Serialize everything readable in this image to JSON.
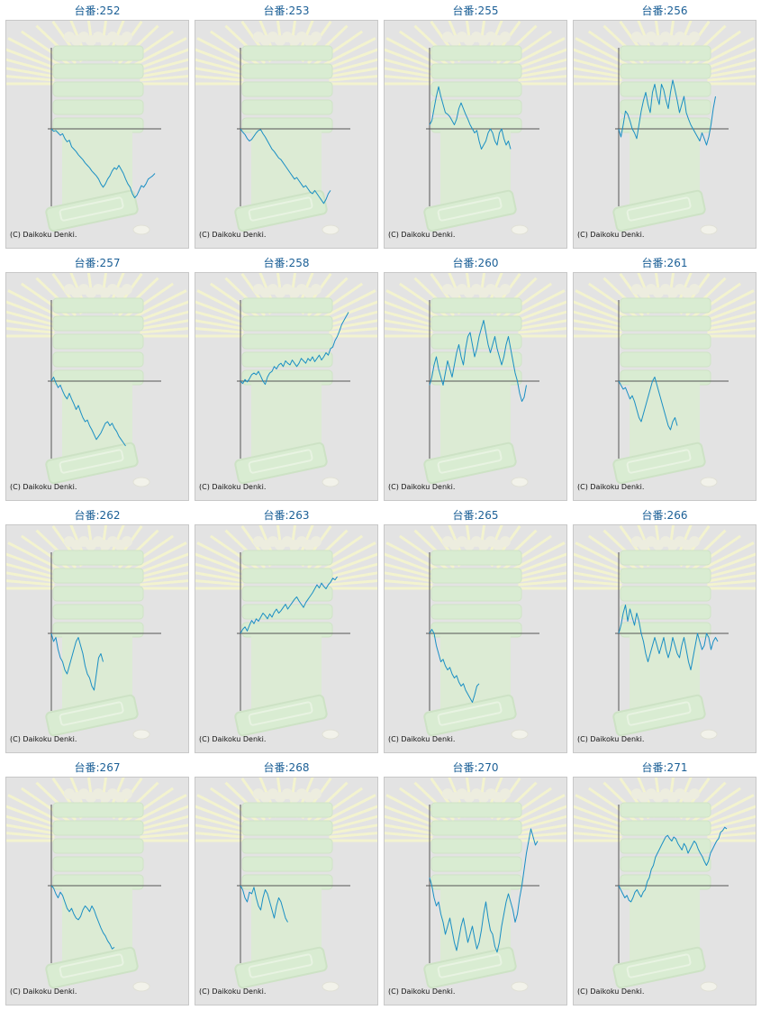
{
  "copyright": "(C) Daikoku Denki.",
  "line_color": "#1a8fc4",
  "chart_data": [
    {
      "type": "line",
      "title": "台番:252",
      "values": [
        0,
        -3,
        -2,
        -5,
        -8,
        -6,
        -12,
        -16,
        -14,
        -22,
        -25,
        -28,
        -32,
        -35,
        -38,
        -42,
        -45,
        -48,
        -52,
        -55,
        -58,
        -62,
        -68,
        -72,
        -68,
        -62,
        -58,
        -52,
        -48,
        -50,
        -45,
        -50,
        -55,
        -62,
        -68,
        -72,
        -80,
        -85,
        -82,
        -76,
        -70,
        -72,
        -68,
        -62,
        -60,
        -58,
        -55
      ]
    },
    {
      "type": "line",
      "title": "台番:253",
      "values": [
        0,
        -4,
        -7,
        -12,
        -15,
        -13,
        -9,
        -5,
        -2,
        -1,
        -6,
        -10,
        -15,
        -20,
        -25,
        -28,
        -32,
        -36,
        -38,
        -42,
        -46,
        -50,
        -54,
        -58,
        -62,
        -60,
        -64,
        -68,
        -72,
        -70,
        -74,
        -78,
        -80,
        -76,
        -80,
        -84,
        -88,
        -92,
        -87,
        -80,
        -76
      ]
    },
    {
      "type": "line",
      "title": "台番:255",
      "values": [
        5,
        10,
        25,
        40,
        52,
        40,
        30,
        20,
        18,
        15,
        10,
        5,
        12,
        25,
        32,
        25,
        18,
        12,
        5,
        0,
        -5,
        -2,
        -15,
        -25,
        -20,
        -15,
        -5,
        0,
        -5,
        -15,
        -20,
        -5,
        0,
        -12,
        -20,
        -15,
        -25
      ]
    },
    {
      "type": "line",
      "title": "台番:256",
      "values": [
        0,
        -10,
        5,
        22,
        18,
        10,
        0,
        -5,
        -12,
        5,
        22,
        35,
        45,
        30,
        20,
        45,
        55,
        40,
        30,
        55,
        48,
        35,
        25,
        45,
        60,
        48,
        35,
        20,
        30,
        40,
        20,
        12,
        5,
        0,
        -5,
        -10,
        -15,
        -5,
        -12,
        -20,
        -10,
        5,
        25,
        40
      ]
    },
    {
      "type": "line",
      "title": "台番:257",
      "values": [
        0,
        5,
        -2,
        -8,
        -5,
        -12,
        -18,
        -22,
        -15,
        -22,
        -28,
        -35,
        -30,
        -38,
        -45,
        -50,
        -48,
        -55,
        -60,
        -66,
        -72,
        -68,
        -64,
        -58,
        -52,
        -50,
        -55,
        -52,
        -58,
        -62,
        -68,
        -72,
        -76,
        -80
      ]
    },
    {
      "type": "line",
      "title": "台番:258",
      "values": [
        0,
        -3,
        2,
        -1,
        3,
        8,
        10,
        8,
        12,
        6,
        0,
        -4,
        5,
        10,
        12,
        18,
        15,
        20,
        22,
        18,
        25,
        22,
        20,
        26,
        22,
        18,
        22,
        28,
        25,
        22,
        28,
        25,
        30,
        24,
        28,
        32,
        26,
        30,
        35,
        32,
        40,
        42,
        50,
        55,
        62,
        70,
        75,
        80,
        85
      ]
    },
    {
      "type": "line",
      "title": "台番:260",
      "values": [
        -5,
        5,
        20,
        30,
        15,
        5,
        -5,
        10,
        25,
        15,
        5,
        20,
        35,
        45,
        30,
        20,
        40,
        55,
        60,
        45,
        30,
        40,
        55,
        65,
        75,
        60,
        45,
        35,
        45,
        55,
        40,
        30,
        20,
        30,
        45,
        55,
        40,
        25,
        10,
        0,
        -15,
        -25,
        -20,
        -5
      ]
    },
    {
      "type": "line",
      "title": "台番:261",
      "values": [
        0,
        -5,
        -10,
        -8,
        -15,
        -22,
        -18,
        -25,
        -35,
        -45,
        -50,
        -40,
        -30,
        -20,
        -10,
        0,
        5,
        -5,
        -15,
        -25,
        -35,
        -45,
        -55,
        -60,
        -50,
        -45,
        -55
      ]
    },
    {
      "type": "line",
      "title": "台番:262",
      "values": [
        0,
        -10,
        -5,
        -20,
        -30,
        -35,
        -45,
        -50,
        -40,
        -30,
        -20,
        -10,
        -5,
        -15,
        -25,
        -40,
        -50,
        -55,
        -65,
        -70,
        -50,
        -30,
        -25,
        -35
      ]
    },
    {
      "type": "line",
      "title": "台番:263",
      "values": [
        0,
        5,
        8,
        3,
        10,
        16,
        12,
        18,
        15,
        20,
        25,
        22,
        18,
        24,
        20,
        26,
        30,
        25,
        28,
        32,
        36,
        30,
        34,
        38,
        42,
        45,
        40,
        36,
        32,
        38,
        42,
        46,
        50,
        55,
        60,
        56,
        62,
        58,
        55,
        60,
        63,
        68,
        66,
        70
      ]
    },
    {
      "type": "line",
      "title": "台番:265",
      "values": [
        0,
        5,
        0,
        -15,
        -25,
        -35,
        -32,
        -40,
        -45,
        -42,
        -50,
        -55,
        -52,
        -60,
        -65,
        -62,
        -70,
        -75,
        -80,
        -85,
        -76,
        -65,
        -62
      ]
    },
    {
      "type": "line",
      "title": "台番:266",
      "values": [
        0,
        10,
        25,
        35,
        15,
        30,
        20,
        10,
        25,
        15,
        0,
        -10,
        -25,
        -35,
        -25,
        -15,
        -5,
        -15,
        -25,
        -15,
        -5,
        -20,
        -30,
        -20,
        -5,
        -15,
        -25,
        -30,
        -15,
        -5,
        -20,
        -35,
        -45,
        -30,
        -15,
        0,
        -10,
        -20,
        -15,
        0,
        -5,
        -20,
        -10,
        -5,
        -10
      ]
    },
    {
      "type": "line",
      "title": "台番:267",
      "values": [
        0,
        -3,
        -10,
        -15,
        -8,
        -12,
        -20,
        -28,
        -32,
        -28,
        -35,
        -40,
        -42,
        -38,
        -30,
        -25,
        -28,
        -32,
        -25,
        -30,
        -38,
        -45,
        -52,
        -58,
        -62,
        -68,
        -72,
        -78,
        -76
      ]
    },
    {
      "type": "line",
      "title": "台番:268",
      "values": [
        0,
        -5,
        -15,
        -20,
        -8,
        -10,
        -2,
        -15,
        -25,
        -30,
        -15,
        -5,
        -10,
        -20,
        -30,
        -40,
        -25,
        -15,
        -20,
        -30,
        -40,
        -45
      ]
    },
    {
      "type": "line",
      "title": "台番:270",
      "values": [
        10,
        0,
        -15,
        -25,
        -20,
        -35,
        -45,
        -60,
        -50,
        -40,
        -55,
        -70,
        -80,
        -65,
        -50,
        -40,
        -55,
        -70,
        -60,
        -50,
        -65,
        -78,
        -70,
        -55,
        -35,
        -20,
        -40,
        -55,
        -60,
        -75,
        -82,
        -70,
        -50,
        -35,
        -20,
        -10,
        -20,
        -30,
        -45,
        -35,
        -15,
        0,
        20,
        40,
        55,
        70,
        60,
        50,
        55
      ]
    },
    {
      "type": "line",
      "title": "台番:271",
      "values": [
        0,
        -5,
        -10,
        -15,
        -12,
        -18,
        -20,
        -15,
        -8,
        -5,
        -10,
        -14,
        -8,
        -5,
        5,
        10,
        20,
        25,
        35,
        40,
        45,
        50,
        55,
        60,
        62,
        58,
        55,
        60,
        58,
        52,
        48,
        44,
        52,
        48,
        40,
        45,
        50,
        55,
        52,
        45,
        40,
        36,
        30,
        25,
        30,
        40,
        45,
        50,
        55,
        58,
        66,
        68,
        72,
        70
      ]
    }
  ]
}
